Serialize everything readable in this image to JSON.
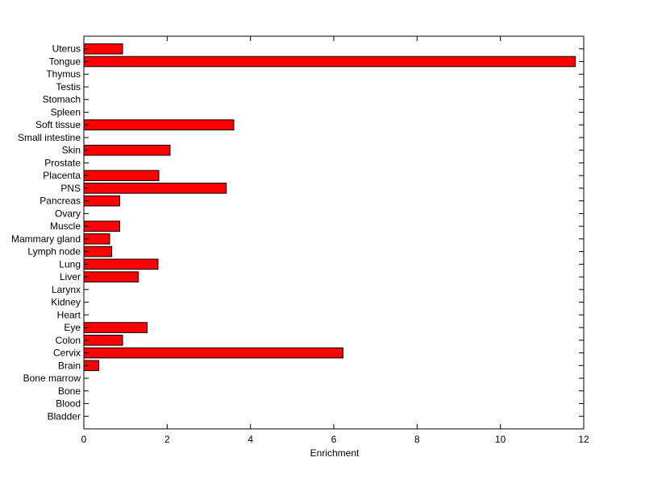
{
  "chart_data": {
    "type": "bar",
    "orientation": "horizontal",
    "categories": [
      "Uterus",
      "Tongue",
      "Thymus",
      "Testis",
      "Stomach",
      "Spleen",
      "Soft tissue",
      "Small intestine",
      "Skin",
      "Prostate",
      "Placenta",
      "PNS",
      "Pancreas",
      "Ovary",
      "Muscle",
      "Mammary gland",
      "Lymph node",
      "Lung",
      "Liver",
      "Larynx",
      "Kidney",
      "Heart",
      "Eye",
      "Colon",
      "Cervix",
      "Brain",
      "Bone marrow",
      "Bone",
      "Blood",
      "Bladder"
    ],
    "values": [
      0.93,
      11.8,
      0,
      0,
      0,
      0,
      3.6,
      0,
      2.07,
      0,
      1.8,
      3.42,
      0.86,
      0,
      0.86,
      0.62,
      0.67,
      1.78,
      1.31,
      0,
      0,
      0,
      1.52,
      0.93,
      6.22,
      0.36,
      0,
      0,
      0,
      0
    ],
    "xlabel": "Enrichment",
    "ylabel": "",
    "title": "",
    "xlim": [
      0,
      12
    ],
    "xticks": [
      0,
      2,
      4,
      6,
      8,
      10,
      12
    ],
    "grid": false,
    "bar_color": "#ff0000",
    "bar_edge_color": "#000000"
  }
}
